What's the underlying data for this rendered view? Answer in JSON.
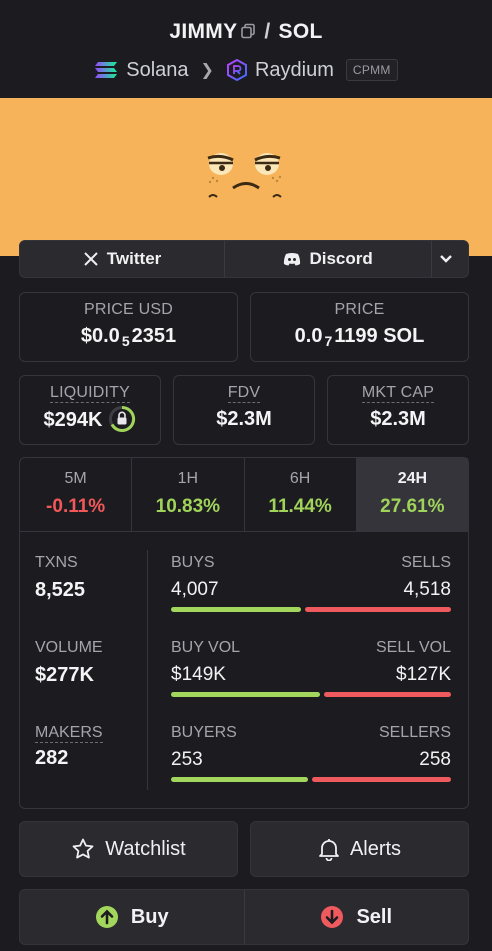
{
  "header": {
    "token_symbol": "JIMMY",
    "separator": "/",
    "quote_symbol": "SOL",
    "chain": "Solana",
    "dex": "Raydium",
    "pool_type": "CPMM"
  },
  "social": {
    "twitter_label": "Twitter",
    "discord_label": "Discord"
  },
  "price_usd": {
    "label": "PRICE USD",
    "prefix": "$0.0",
    "zeros": "5",
    "digits": "2351"
  },
  "price_native": {
    "label": "PRICE",
    "prefix": "0.0",
    "zeros": "7",
    "digits": "1199 SOL"
  },
  "liquidity": {
    "label": "LIQUIDITY",
    "value": "$294K"
  },
  "fdv": {
    "label": "FDV",
    "value": "$2.3M"
  },
  "mkt_cap": {
    "label": "MKT CAP",
    "value": "$2.3M"
  },
  "timeframes": [
    {
      "label": "5M",
      "change": "-0.11%",
      "direction": "neg"
    },
    {
      "label": "1H",
      "change": "10.83%",
      "direction": "pos"
    },
    {
      "label": "6H",
      "change": "11.44%",
      "direction": "pos"
    },
    {
      "label": "24H",
      "change": "27.61%",
      "direction": "pos",
      "active": true
    }
  ],
  "stats": {
    "txns": {
      "label": "TXNS",
      "value": "8,525"
    },
    "volume": {
      "label": "VOLUME",
      "value": "$277K"
    },
    "makers": {
      "label": "MAKERS",
      "value": "282"
    },
    "buys": {
      "left_label": "BUYS",
      "right_label": "SELLS",
      "left_value": "4,007",
      "right_value": "4,518",
      "buy_fraction": 0.47
    },
    "vol_split": {
      "left_label": "BUY VOL",
      "right_label": "SELL VOL",
      "left_value": "$149K",
      "right_value": "$127K",
      "buy_fraction": 0.54
    },
    "traders": {
      "left_label": "BUYERS",
      "right_label": "SELLERS",
      "left_value": "253",
      "right_value": "258",
      "buy_fraction": 0.495
    }
  },
  "actions": {
    "watchlist_label": "Watchlist",
    "alerts_label": "Alerts",
    "buy_label": "Buy",
    "sell_label": "Sell"
  },
  "colors": {
    "positive": "#9fd35a",
    "negative": "#f0585a",
    "banner": "#f6b35a",
    "buy_bar": "#a3d65c",
    "sell_bar": "#ef5a5f"
  }
}
